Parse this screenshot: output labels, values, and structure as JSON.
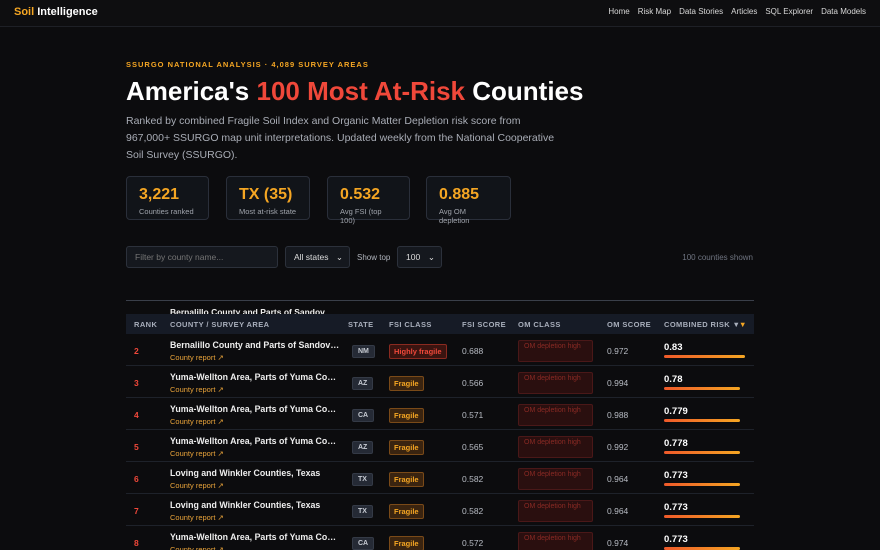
{
  "nav": {
    "brand_accent": "Soil",
    "brand_rest": " Intelligence",
    "links": [
      "Home",
      "Risk Map",
      "Data Stories",
      "Articles",
      "SQL Explorer",
      "Data Models"
    ]
  },
  "hero": {
    "eyebrow": "SSURGO NATIONAL ANALYSIS · 4,089 SURVEY AREAS",
    "title_pre": "America's ",
    "title_accent": "100 Most At-Risk",
    "title_post": " Counties",
    "description": "Ranked by combined Fragile Soil Index and Organic Matter Depletion risk score from 967,000+ SSURGO map unit interpretations. Updated weekly from the National Cooperative Soil Survey (SSURGO)."
  },
  "stats": [
    {
      "value": "3,221",
      "label": "Counties ranked"
    },
    {
      "value": "TX (35)",
      "label": "Most at-risk state"
    },
    {
      "value": "0.532",
      "label": "Avg FSI (top 100)"
    },
    {
      "value": "0.885",
      "label": "Avg OM depletion"
    }
  ],
  "filters": {
    "placeholder": "Filter by county name...",
    "state_select": "All states",
    "show_top_label": "Show top",
    "show_top_value": "100",
    "count_text": "100 counties shown"
  },
  "table": {
    "ghost_name": "Bernalillo County and Parts of Sandov",
    "columns": [
      "RANK",
      "COUNTY / SURVEY AREA",
      "STATE",
      "FSI CLASS",
      "FSI SCORE",
      "OM CLASS",
      "OM SCORE",
      "COMBINED RISK ▼"
    ],
    "sort_indicator": "▼",
    "link_text": "County report ↗",
    "rows": [
      [
        "2",
        "Bernalillo County and Parts of Sandov…",
        "NM",
        "Highly fragile",
        "0.688",
        "OM depletion high",
        "0.972",
        0.83
      ],
      [
        "3",
        "Yuma-Wellton Area, Parts of Yuma Co…",
        "AZ",
        "Fragile",
        "0.566",
        "OM depletion high",
        "0.994",
        0.78
      ],
      [
        "4",
        "Yuma-Wellton Area, Parts of Yuma Co…",
        "CA",
        "Fragile",
        "0.571",
        "OM depletion high",
        "0.988",
        0.779
      ],
      [
        "5",
        "Yuma-Wellton Area, Parts of Yuma Co…",
        "AZ",
        "Fragile",
        "0.565",
        "OM depletion high",
        "0.992",
        0.778
      ],
      [
        "6",
        "Loving and Winkler Counties, Texas",
        "TX",
        "Fragile",
        "0.582",
        "OM depletion high",
        "0.964",
        0.773
      ],
      [
        "7",
        "Loving and Winkler Counties, Texas",
        "TX",
        "Fragile",
        "0.582",
        "OM depletion high",
        "0.964",
        0.773
      ],
      [
        "8",
        "Yuma-Wellton Area, Parts of Yuma Co…",
        "CA",
        "Fragile",
        "0.572",
        "OM depletion high",
        "0.974",
        0.773
      ]
    ]
  }
}
